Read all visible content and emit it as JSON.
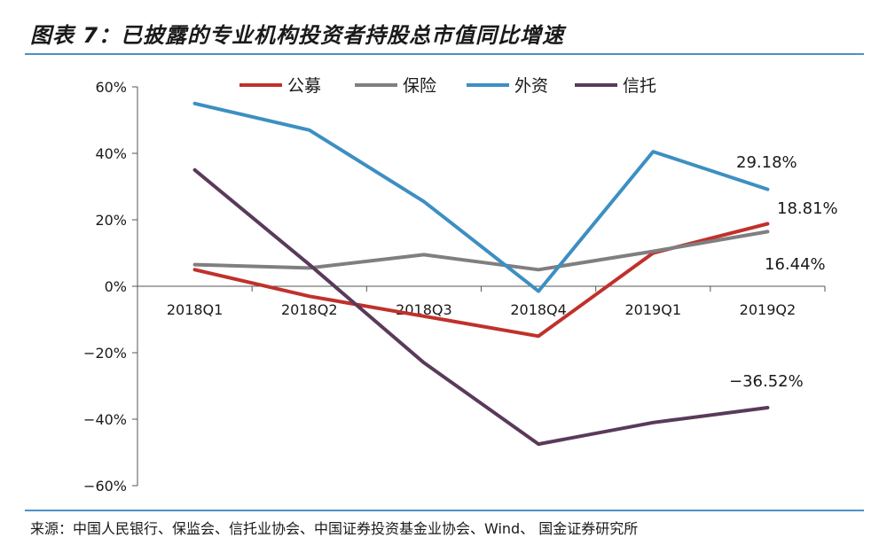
{
  "figure": {
    "title": "图表 7：已披露的专业机构投资者持股总市值同比增速",
    "source": "来源：中国人民银行、保监会、信托业协会、中国证券投资基金业协会、Wind、 国金证券研究所"
  },
  "chart_data": {
    "type": "line",
    "categories": [
      "2018Q1",
      "2018Q2",
      "2018Q3",
      "2018Q4",
      "2019Q1",
      "2019Q2"
    ],
    "yticks": [
      "60%",
      "40%",
      "20%",
      "0%",
      "−20%",
      "−40%",
      "−60%"
    ],
    "ylim": [
      -60,
      60
    ],
    "series": [
      {
        "name": "公募",
        "color": "#c0312b",
        "values": [
          5,
          -3,
          -9,
          -15,
          10,
          18.81
        ]
      },
      {
        "name": "保险",
        "color": "#7f7f7f",
        "values": [
          6.5,
          5.5,
          9.5,
          5,
          10.5,
          16.44
        ]
      },
      {
        "name": "外资",
        "color": "#3d8fc2",
        "values": [
          55,
          47,
          25.5,
          -1.5,
          40.5,
          29.18
        ]
      },
      {
        "name": "信托",
        "color": "#5a3a5a",
        "values": [
          35,
          6.5,
          -23,
          -47.5,
          -41,
          -36.52
        ]
      }
    ],
    "annotations": [
      {
        "text": "29.18%",
        "series": 2
      },
      {
        "text": "18.81%",
        "series": 0
      },
      {
        "text": "16.44%",
        "series": 1
      },
      {
        "text": "−36.52%",
        "series": 3
      }
    ],
    "legend": "top"
  }
}
